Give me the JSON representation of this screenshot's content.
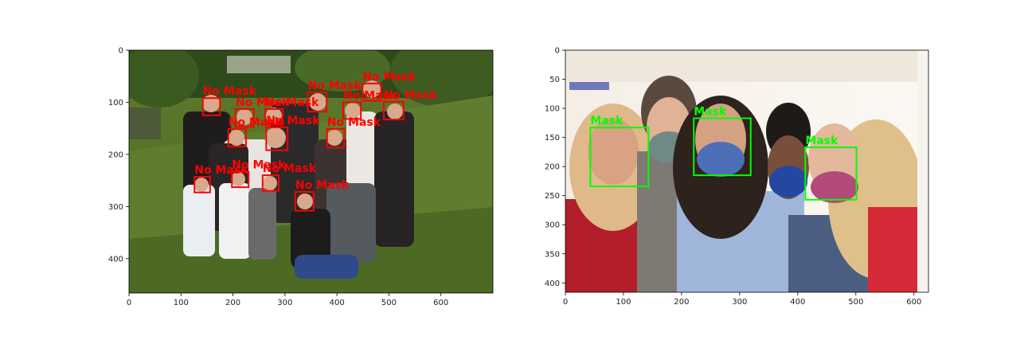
{
  "chart_data": [
    {
      "type": "image",
      "xlim": [
        0,
        700
      ],
      "ylim": [
        466,
        0
      ],
      "xticks": [
        0,
        100,
        200,
        300,
        400,
        500,
        600
      ],
      "yticks": [
        0,
        100,
        200,
        300,
        400
      ],
      "box_color": "#ff0000",
      "detections": [
        {
          "label": "No Mask",
          "x0": 142,
          "y0": 92,
          "x1": 175,
          "y1": 125
        },
        {
          "label": "No Mask",
          "x0": 205,
          "y0": 113,
          "x1": 240,
          "y1": 147
        },
        {
          "label": "No Mask",
          "x0": 262,
          "y0": 113,
          "x1": 296,
          "y1": 143
        },
        {
          "label": "No Mask",
          "x0": 344,
          "y0": 81,
          "x1": 380,
          "y1": 118
        },
        {
          "label": "No Mask",
          "x0": 412,
          "y0": 100,
          "x1": 446,
          "y1": 132
        },
        {
          "label": "No Mask",
          "x0": 449,
          "y0": 64,
          "x1": 485,
          "y1": 97
        },
        {
          "label": "No Mask",
          "x0": 490,
          "y0": 99,
          "x1": 528,
          "y1": 133
        },
        {
          "label": "No Mask",
          "x0": 191,
          "y0": 151,
          "x1": 225,
          "y1": 185
        },
        {
          "label": "No Mask",
          "x0": 264,
          "y0": 148,
          "x1": 305,
          "y1": 192
        },
        {
          "label": "No Mask",
          "x0": 381,
          "y0": 151,
          "x1": 414,
          "y1": 187
        },
        {
          "label": "No Mask",
          "x0": 126,
          "y0": 243,
          "x1": 156,
          "y1": 273
        },
        {
          "label": "No Mask",
          "x0": 198,
          "y0": 233,
          "x1": 230,
          "y1": 263
        },
        {
          "label": "No Mask",
          "x0": 257,
          "y0": 240,
          "x1": 288,
          "y1": 270
        },
        {
          "label": "No Mask",
          "x0": 320,
          "y0": 272,
          "x1": 355,
          "y1": 308
        }
      ]
    },
    {
      "type": "image",
      "xlim": [
        0,
        625
      ],
      "ylim": [
        416,
        0
      ],
      "xticks": [
        0,
        100,
        200,
        300,
        400,
        500,
        600
      ],
      "yticks": [
        0,
        50,
        100,
        150,
        200,
        250,
        300,
        350,
        400
      ],
      "box_color": "#00ff00",
      "detections": [
        {
          "label": "Mask",
          "x0": 43,
          "y0": 133,
          "x1": 143,
          "y1": 234
        },
        {
          "label": "Mask",
          "x0": 221,
          "y0": 117,
          "x1": 319,
          "y1": 215
        },
        {
          "label": "Mask",
          "x0": 413,
          "y0": 167,
          "x1": 501,
          "y1": 257
        }
      ]
    }
  ]
}
